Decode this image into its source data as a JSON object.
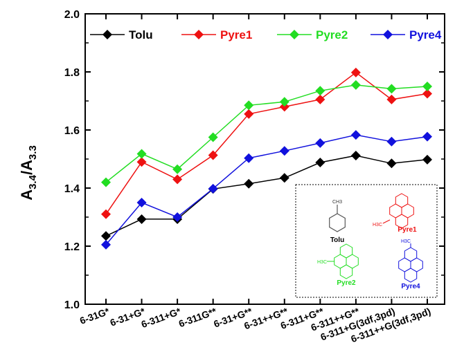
{
  "chart_data": {
    "type": "line",
    "ylabel": {
      "main": "A",
      "sub1": "3.4",
      "slash": "/A",
      "sub2": "3.3"
    },
    "ylim": [
      1.0,
      2.0
    ],
    "yticks": [
      "1.0",
      "1.2",
      "1.4",
      "1.6",
      "1.8",
      "2.0"
    ],
    "categories": [
      "6-31G*",
      "6-31+G*",
      "6-311+G*",
      "6-311G**",
      "6-31+G**",
      "6-31++G**",
      "6-311+G**",
      "6-311++G**",
      "6-311+G(3df,3pd)",
      "6-311++G(3df,3pd)"
    ],
    "legend_position": "top",
    "series": [
      {
        "name": "Tolu",
        "color": "#000000",
        "values": [
          1.235,
          1.293,
          1.293,
          1.397,
          1.415,
          1.435,
          1.488,
          1.512,
          1.485,
          1.498
        ]
      },
      {
        "name": "Pyre1",
        "color": "#ee1111",
        "values": [
          1.31,
          1.49,
          1.43,
          1.513,
          1.655,
          1.68,
          1.705,
          1.798,
          1.705,
          1.725
        ]
      },
      {
        "name": "Pyre2",
        "color": "#22dd22",
        "values": [
          1.42,
          1.518,
          1.465,
          1.575,
          1.685,
          1.697,
          1.735,
          1.755,
          1.742,
          1.75
        ]
      },
      {
        "name": "Pyre4",
        "color": "#1111dd",
        "values": [
          1.205,
          1.35,
          1.3,
          1.398,
          1.503,
          1.528,
          1.555,
          1.583,
          1.56,
          1.577
        ]
      }
    ],
    "inset": {
      "labels": [
        "Tolu",
        "Pyre1",
        "Pyre2",
        "Pyre4"
      ],
      "substituent": [
        "CH",
        "3",
        "H",
        "3",
        "C"
      ]
    }
  }
}
